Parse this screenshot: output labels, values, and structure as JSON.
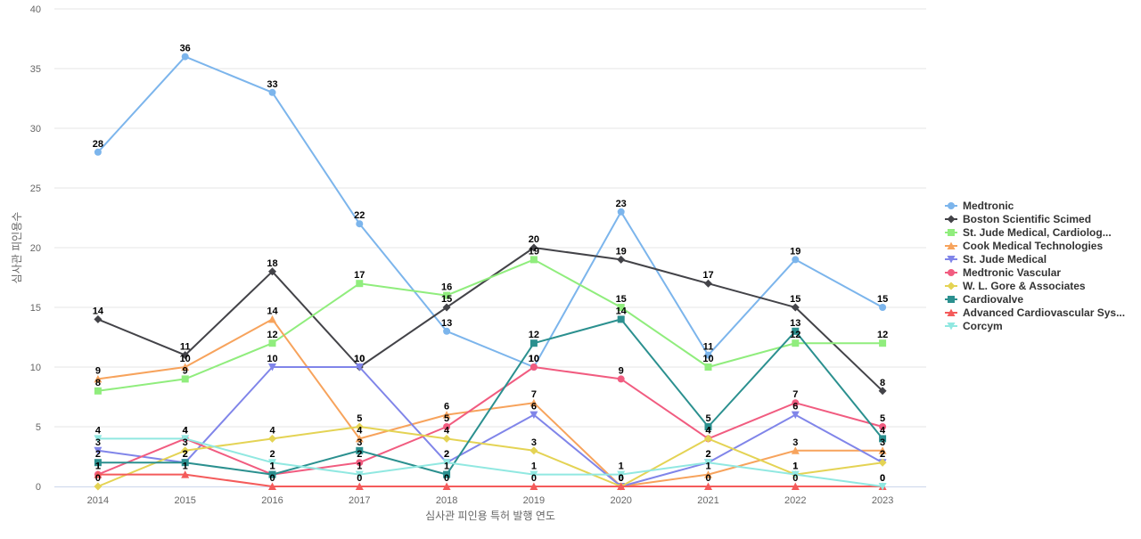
{
  "chart_data": {
    "type": "line",
    "xlabel": "심사관 피인용 특허 발행 연도",
    "ylabel": "심사관 피인용수",
    "categories": [
      "2014",
      "2015",
      "2016",
      "2017",
      "2018",
      "2019",
      "2020",
      "2021",
      "2022",
      "2023"
    ],
    "ylim": [
      0,
      40
    ],
    "yticks": [
      0,
      5,
      10,
      15,
      20,
      25,
      30,
      35,
      40
    ],
    "grid": true,
    "legend_position": "right",
    "series": [
      {
        "name": "Medtronic",
        "color": "#7cb5ec",
        "marker": "circle",
        "values": [
          28,
          36,
          33,
          22,
          13,
          10,
          23,
          11,
          19,
          15
        ]
      },
      {
        "name": "Boston Scientific Scimed",
        "color": "#434348",
        "marker": "diamond",
        "values": [
          14,
          11,
          18,
          10,
          15,
          20,
          19,
          17,
          15,
          8
        ]
      },
      {
        "name": "St. Jude Medical, Cardiolog...",
        "color": "#90ed7d",
        "marker": "square",
        "values": [
          8,
          9,
          12,
          17,
          16,
          19,
          15,
          10,
          12,
          12
        ]
      },
      {
        "name": "Cook Medical Technologies",
        "color": "#f7a35c",
        "marker": "triangle",
        "values": [
          9,
          10,
          14,
          4,
          6,
          7,
          0,
          1,
          3,
          3
        ]
      },
      {
        "name": "St. Jude Medical",
        "color": "#8085e9",
        "marker": "triangle-down",
        "values": [
          3,
          2,
          10,
          10,
          2,
          6,
          0,
          2,
          6,
          2
        ]
      },
      {
        "name": "Medtronic Vascular",
        "color": "#f15c80",
        "marker": "circle",
        "values": [
          1,
          4,
          1,
          2,
          5,
          10,
          9,
          4,
          7,
          5
        ]
      },
      {
        "name": "W. L. Gore & Associates",
        "color": "#e4d354",
        "marker": "diamond",
        "values": [
          0,
          3,
          4,
          5,
          4,
          3,
          0,
          4,
          1,
          2
        ]
      },
      {
        "name": "Cardiovalve",
        "color": "#2b908f",
        "marker": "square",
        "values": [
          2,
          2,
          1,
          3,
          1,
          12,
          14,
          5,
          13,
          4
        ]
      },
      {
        "name": "Advanced Cardiovascular Sys...",
        "color": "#f45b5b",
        "marker": "triangle",
        "values": [
          1,
          1,
          0,
          0,
          0,
          0,
          0,
          0,
          0,
          0
        ]
      },
      {
        "name": "Corcym",
        "color": "#91e8e1",
        "marker": "triangle-down",
        "values": [
          4,
          4,
          2,
          1,
          2,
          1,
          1,
          2,
          1,
          0
        ]
      }
    ]
  }
}
